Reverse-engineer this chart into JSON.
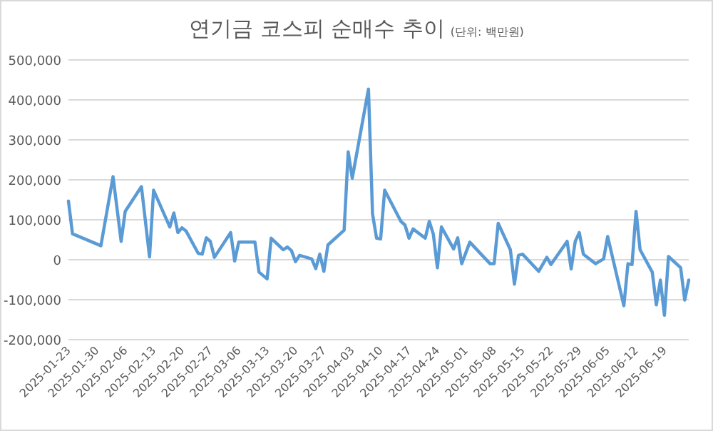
{
  "chart_data": {
    "type": "line",
    "title": "연기금 코스피 순매수 추이",
    "subtitle": "(단위: 백만원)",
    "x": [
      "2025-01-23",
      "2025-01-24",
      "2025-01-31",
      "2025-02-03",
      "2025-02-05",
      "2025-02-06",
      "2025-02-10",
      "2025-02-12",
      "2025-02-13",
      "2025-02-17",
      "2025-02-18",
      "2025-02-19",
      "2025-02-20",
      "2025-02-21",
      "2025-02-24",
      "2025-02-25",
      "2025-02-26",
      "2025-02-27",
      "2025-02-28",
      "2025-03-04",
      "2025-03-05",
      "2025-03-06",
      "2025-03-10",
      "2025-03-11",
      "2025-03-13",
      "2025-03-14",
      "2025-03-17",
      "2025-03-18",
      "2025-03-19",
      "2025-03-20",
      "2025-03-21",
      "2025-03-24",
      "2025-03-25",
      "2025-03-26",
      "2025-03-27",
      "2025-03-28",
      "2025-04-01",
      "2025-04-02",
      "2025-04-03",
      "2025-04-07",
      "2025-04-08",
      "2025-04-09",
      "2025-04-10",
      "2025-04-11",
      "2025-04-15",
      "2025-04-16",
      "2025-04-17",
      "2025-04-18",
      "2025-04-21",
      "2025-04-22",
      "2025-04-23",
      "2025-04-24",
      "2025-04-25",
      "2025-04-28",
      "2025-04-29",
      "2025-04-30",
      "2025-05-02",
      "2025-05-07",
      "2025-05-08",
      "2025-05-09",
      "2025-05-12",
      "2025-05-13",
      "2025-05-14",
      "2025-05-15",
      "2025-05-19",
      "2025-05-21",
      "2025-05-22",
      "2025-05-26",
      "2025-05-27",
      "2025-05-28",
      "2025-05-29",
      "2025-05-30",
      "2025-06-02",
      "2025-06-04",
      "2025-06-05",
      "2025-06-09",
      "2025-06-10",
      "2025-06-11",
      "2025-06-12",
      "2025-06-13",
      "2025-06-16",
      "2025-06-17",
      "2025-06-18",
      "2025-06-19",
      "2025-06-20",
      "2025-06-23",
      "2025-06-24",
      "2025-06-25"
    ],
    "series": [
      {
        "color": "#5b9bd5",
        "values": [
          147000,
          65000,
          35000,
          208000,
          46000,
          121000,
          183000,
          7000,
          174000,
          82000,
          117000,
          68000,
          80000,
          72000,
          16000,
          14000,
          55000,
          46000,
          6000,
          68000,
          -3000,
          44000,
          44000,
          -31000,
          -48000,
          54000,
          25000,
          32000,
          23000,
          -5000,
          11000,
          2000,
          -22000,
          14000,
          -29000,
          37000,
          74000,
          270000,
          204000,
          427000,
          115000,
          54000,
          52000,
          174000,
          96000,
          87000,
          54000,
          77000,
          54000,
          96000,
          64000,
          -20000,
          82000,
          27000,
          55000,
          -10000,
          44000,
          -10000,
          -10000,
          91000,
          25000,
          -61000,
          11000,
          14000,
          -29000,
          6000,
          -12000,
          46000,
          -23000,
          46000,
          68000,
          14000,
          -10000,
          2000,
          58000,
          -115000,
          -10000,
          -12000,
          121000,
          25000,
          -31000,
          -113000,
          -51000,
          -139000,
          8000,
          -20000,
          -101000,
          -51000
        ]
      }
    ],
    "xlim": [
      "2025-01-23",
      "2025-06-25"
    ],
    "xticks": [
      "2025-01-23",
      "2025-01-30",
      "2025-02-06",
      "2025-02-13",
      "2025-02-20",
      "2025-02-27",
      "2025-03-06",
      "2025-03-13",
      "2025-03-20",
      "2025-03-27",
      "2025-04-03",
      "2025-04-10",
      "2025-04-17",
      "2025-04-24",
      "2025-05-01",
      "2025-05-08",
      "2025-05-15",
      "2025-05-22",
      "2025-05-29",
      "2025-06-05",
      "2025-06-12",
      "2025-06-19"
    ],
    "ylim": [
      -200000,
      500000
    ],
    "yticks": [
      {
        "value": -200000,
        "label": "-200,000"
      },
      {
        "value": -100000,
        "label": "-100,000"
      },
      0,
      {
        "value": 100000,
        "label": "100,000"
      },
      {
        "value": 200000,
        "label": "200,000"
      },
      {
        "value": 300000,
        "label": "300,000"
      },
      {
        "value": 400000,
        "label": "400,000"
      },
      {
        "value": 500000,
        "label": "500,000"
      }
    ],
    "grid": "y",
    "marker": "none",
    "line_style": "solid"
  }
}
